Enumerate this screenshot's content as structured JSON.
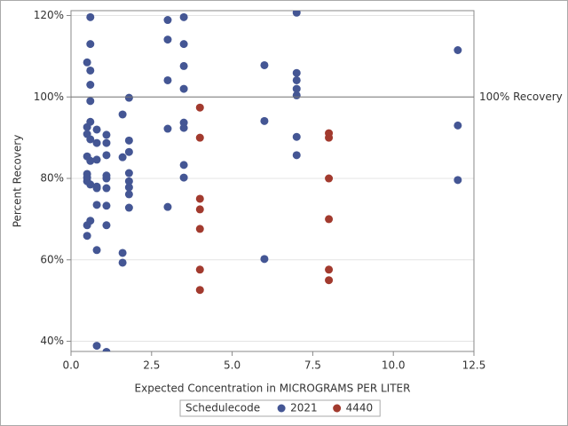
{
  "chart_data": {
    "type": "scatter",
    "x_label": "Expected Concentration in MICROGRAMS PER LITER",
    "y_label": "Percent Recovery",
    "xlim": [
      0,
      12.5
    ],
    "ylim": [
      37.5,
      121.2
    ],
    "xticks": [
      {
        "value": 0,
        "label": "0.0"
      },
      2.5,
      {
        "value": 5,
        "label": "5.0"
      },
      7.5,
      {
        "value": 10,
        "label": "10.0"
      },
      12.5
    ],
    "yticks": [
      {
        "value": 40,
        "label": "40%"
      },
      {
        "value": 60,
        "label": "60%"
      },
      {
        "value": 80,
        "label": "80%"
      },
      {
        "value": 100,
        "label": "100%"
      },
      {
        "value": 120,
        "label": "120%"
      }
    ],
    "grid": true,
    "reference_line": {
      "value": 100,
      "label": "100% Recovery"
    },
    "legend_title": "Schedulecode",
    "legend_position": "bottom",
    "series": [
      {
        "name": "2021",
        "color": "#445694",
        "x": [
          0.6,
          0.6,
          0.5,
          0.6,
          0.6,
          0.6,
          0.6,
          0.5,
          0.5,
          0.6,
          0.5,
          0.6,
          0.5,
          0.5,
          0.5,
          0.6,
          0.6,
          0.5,
          0.5,
          0.8,
          0.8,
          0.8,
          0.8,
          0.8,
          0.8,
          0.8,
          0.8,
          1.1,
          1.1,
          1.1,
          1.1,
          1.1,
          1.1,
          1.1,
          1.1,
          1.1,
          1.6,
          1.6,
          1.6,
          1.6,
          1.8,
          1.8,
          1.8,
          1.8,
          1.8,
          1.8,
          1.8,
          1.8,
          3,
          3,
          3,
          3,
          3,
          3.5,
          3.5,
          3.5,
          3.5,
          3.5,
          3.5,
          3.5,
          3.5,
          6,
          6,
          6,
          7,
          7,
          7,
          7,
          7,
          7,
          7,
          12,
          12,
          12
        ],
        "values": [
          119.6,
          113.0,
          108.5,
          106.5,
          103.0,
          99.0,
          93.9,
          92.6,
          90.9,
          89.6,
          85.4,
          84.3,
          81.1,
          80.2,
          79.3,
          78.5,
          69.6,
          68.5,
          65.9,
          92.0,
          88.7,
          84.6,
          78.0,
          77.6,
          73.5,
          62.4,
          38.9,
          90.7,
          88.7,
          85.7,
          80.7,
          80.0,
          77.6,
          73.3,
          68.5,
          37.4,
          95.7,
          85.2,
          61.7,
          59.3,
          99.8,
          89.3,
          86.5,
          81.3,
          79.3,
          77.8,
          76.1,
          72.8,
          118.9,
          114.1,
          104.1,
          92.2,
          73.0,
          119.6,
          113.0,
          107.6,
          102.0,
          93.7,
          92.4,
          83.3,
          80.2,
          107.8,
          94.1,
          60.2,
          120.7,
          105.9,
          104.1,
          102.0,
          100.4,
          90.2,
          85.7,
          111.5,
          93.0,
          79.6
        ]
      },
      {
        "name": "4440",
        "color": "#a23a2e",
        "x": [
          4,
          4,
          4,
          4,
          4,
          4,
          4,
          8,
          8,
          8,
          8,
          8,
          8
        ],
        "values": [
          97.4,
          90.0,
          75.0,
          72.4,
          67.6,
          57.6,
          52.6,
          91.1,
          90.0,
          80.0,
          70.0,
          57.6,
          55.0
        ]
      }
    ]
  }
}
